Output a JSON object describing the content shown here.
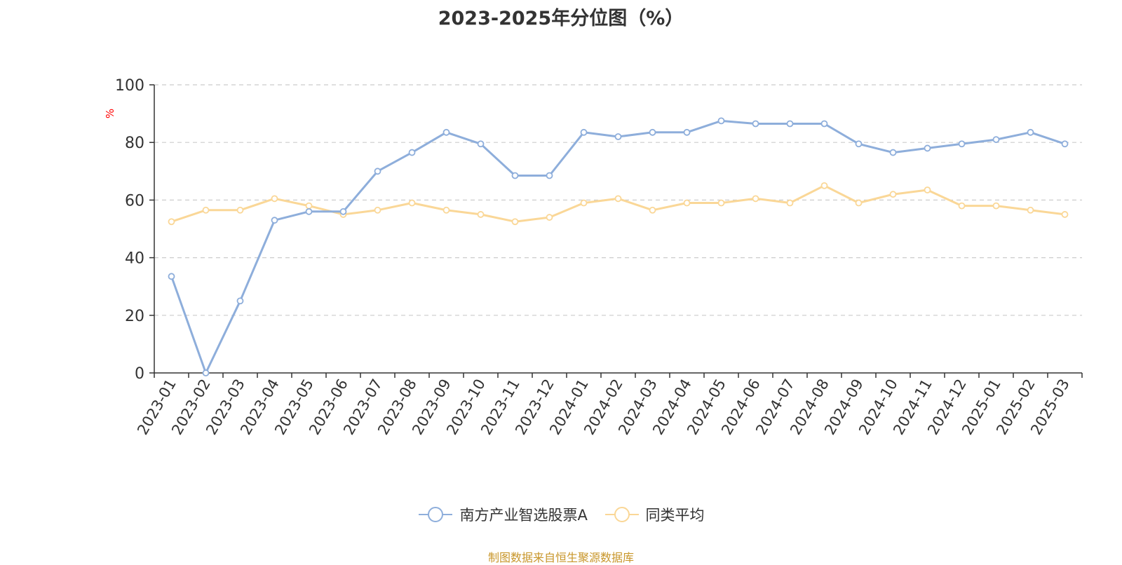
{
  "chart_data": {
    "type": "line",
    "title": "2023-2025年分位图（%）",
    "ylabel": "%",
    "ylim": [
      0,
      100
    ],
    "yticks": [
      0,
      20,
      40,
      60,
      80,
      100
    ],
    "grid": true,
    "legend_position": "bottom",
    "categories": [
      "2023-01",
      "2023-02",
      "2023-03",
      "2023-04",
      "2023-05",
      "2023-06",
      "2023-07",
      "2023-08",
      "2023-09",
      "2023-10",
      "2023-11",
      "2023-12",
      "2024-01",
      "2024-02",
      "2024-03",
      "2024-04",
      "2024-05",
      "2024-06",
      "2024-07",
      "2024-08",
      "2024-09",
      "2024-10",
      "2024-11",
      "2024-12",
      "2025-01",
      "2025-02",
      "2025-03"
    ],
    "series": [
      {
        "name": "南方产业智选股票A",
        "color": "#8eaedb",
        "values": [
          33.5,
          0,
          25,
          53,
          56,
          56,
          70,
          76.5,
          83.5,
          79.5,
          68.5,
          68.5,
          83.5,
          82,
          83.5,
          83.5,
          87.5,
          86.5,
          86.5,
          86.5,
          79.5,
          76.5,
          78,
          79.5,
          81,
          83.5,
          79.5
        ]
      },
      {
        "name": "同类平均",
        "color": "#fad797",
        "values": [
          52.5,
          56.5,
          56.5,
          60.5,
          58,
          55,
          56.5,
          59,
          56.5,
          55,
          52.5,
          54,
          59,
          60.5,
          56.5,
          59,
          59,
          60.5,
          59,
          65,
          59,
          62,
          63.5,
          58,
          58,
          56.5,
          55
        ]
      }
    ]
  },
  "footer": {
    "source": "制图数据来自恒生聚源数据库"
  }
}
